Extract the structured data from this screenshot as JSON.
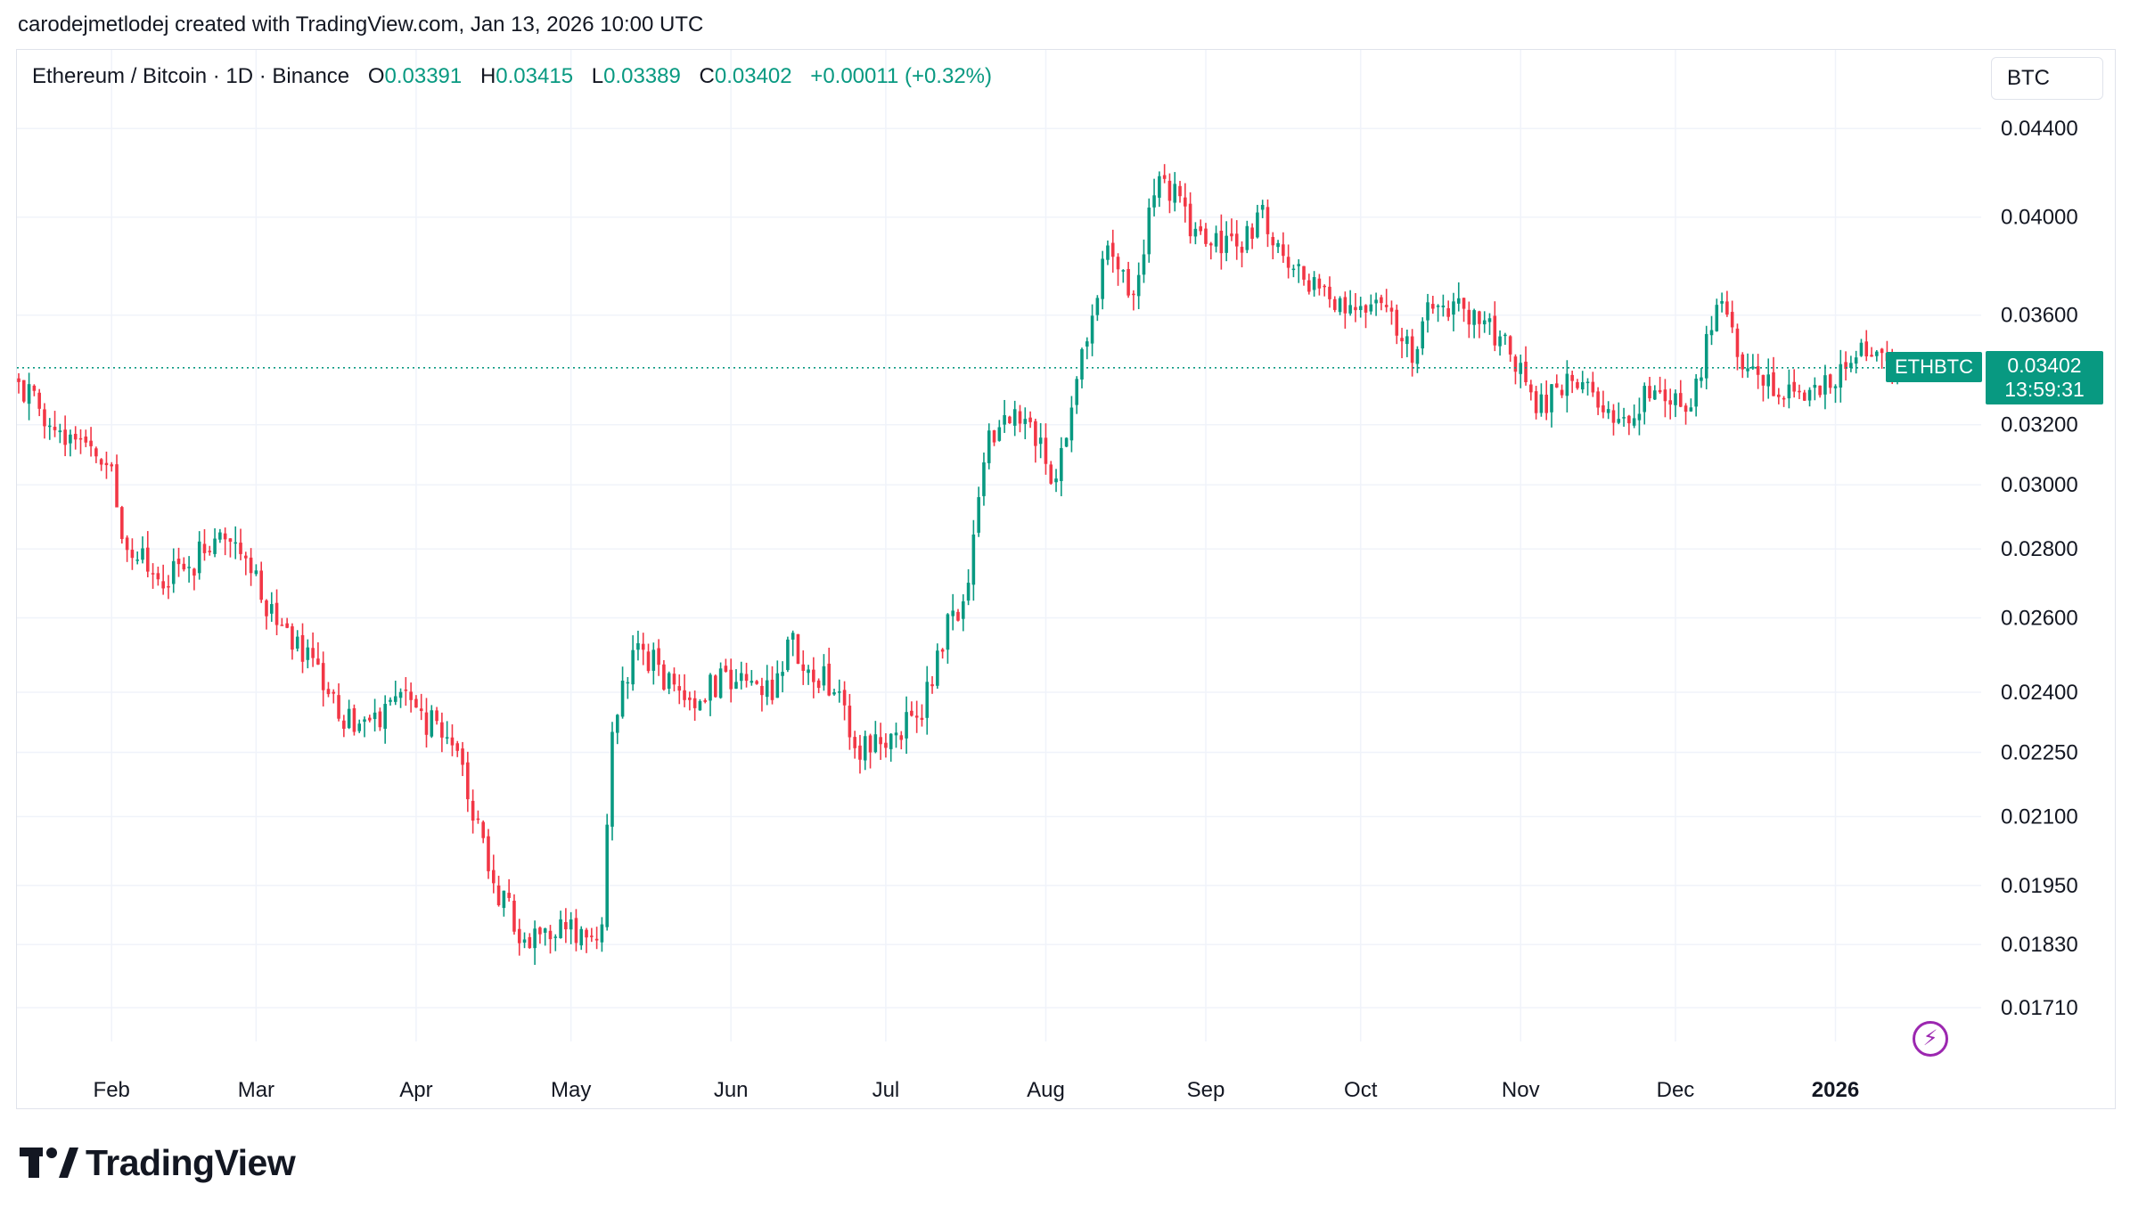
{
  "header": {
    "snapshot_line": "carodejmetlodej created with TradingView.com, Jan 13, 2026 10:00 UTC"
  },
  "legend": {
    "symbol": "Ethereum / Bitcoin · 1D · Binance",
    "open_label": "O",
    "open_value": "0.03391",
    "high_label": "H",
    "high_value": "0.03415",
    "low_label": "L",
    "low_value": "0.03389",
    "close_label": "C",
    "close_value": "0.03402",
    "change": "+0.00011 (+0.32%)"
  },
  "currency": "BTC",
  "price_badge": {
    "price": "0.03402",
    "countdown": "13:59:31",
    "series_tag": "ETHBTC"
  },
  "logo_text": "TradingView",
  "colors": {
    "up": "#089981",
    "down": "#f23645",
    "grid": "#f0f3fa",
    "text": "#131722"
  },
  "chart_data": {
    "type": "candlestick",
    "y_scale": "log",
    "ylim": [
      0.0163,
      0.0463
    ],
    "y_ticks": [
      "0.04400",
      "0.04000",
      "0.03600",
      "0.03200",
      "0.03000",
      "0.02800",
      "0.02600",
      "0.02400",
      "0.02250",
      "0.02100",
      "0.01950",
      "0.01830",
      "0.01710"
    ],
    "x_ticks": [
      "Feb",
      "Mar",
      "Apr",
      "May",
      "Jun",
      "Jul",
      "Aug",
      "Sep",
      "Oct",
      "Nov",
      "Dec",
      "2026"
    ],
    "x_range": [
      "2025-01-14",
      "2026-01-13"
    ],
    "last_price": 0.03402,
    "anchors": [
      {
        "date": "2025-01-14",
        "close": 0.0335
      },
      {
        "date": "2025-01-22",
        "close": 0.0318
      },
      {
        "date": "2025-02-01",
        "close": 0.0306
      },
      {
        "date": "2025-02-03",
        "close": 0.0283
      },
      {
        "date": "2025-02-10",
        "close": 0.0271
      },
      {
        "date": "2025-02-20",
        "close": 0.0279
      },
      {
        "date": "2025-02-25",
        "close": 0.0282
      },
      {
        "date": "2025-03-05",
        "close": 0.0258
      },
      {
        "date": "2025-03-12",
        "close": 0.0249
      },
      {
        "date": "2025-03-20",
        "close": 0.023
      },
      {
        "date": "2025-03-31",
        "close": 0.0238
      },
      {
        "date": "2025-04-10",
        "close": 0.0222
      },
      {
        "date": "2025-04-15",
        "close": 0.0198
      },
      {
        "date": "2025-04-22",
        "close": 0.0184
      },
      {
        "date": "2025-05-07",
        "close": 0.0187
      },
      {
        "date": "2025-05-09",
        "close": 0.023
      },
      {
        "date": "2025-05-14",
        "close": 0.0253
      },
      {
        "date": "2025-05-23",
        "close": 0.0238
      },
      {
        "date": "2025-06-03",
        "close": 0.0245
      },
      {
        "date": "2025-06-09",
        "close": 0.0238
      },
      {
        "date": "2025-06-12",
        "close": 0.0254
      },
      {
        "date": "2025-06-21",
        "close": 0.024
      },
      {
        "date": "2025-06-25",
        "close": 0.0226
      },
      {
        "date": "2025-07-08",
        "close": 0.0233
      },
      {
        "date": "2025-07-11",
        "close": 0.0251
      },
      {
        "date": "2025-07-17",
        "close": 0.027
      },
      {
        "date": "2025-07-21",
        "close": 0.0318
      },
      {
        "date": "2025-07-28",
        "close": 0.0322
      },
      {
        "date": "2025-08-03",
        "close": 0.0302
      },
      {
        "date": "2025-08-09",
        "close": 0.035
      },
      {
        "date": "2025-08-13",
        "close": 0.0388
      },
      {
        "date": "2025-08-18",
        "close": 0.0368
      },
      {
        "date": "2025-08-23",
        "close": 0.0418
      },
      {
        "date": "2025-08-30",
        "close": 0.0395
      },
      {
        "date": "2025-09-08",
        "close": 0.0385
      },
      {
        "date": "2025-09-11",
        "close": 0.0402
      },
      {
        "date": "2025-09-20",
        "close": 0.0374
      },
      {
        "date": "2025-09-26",
        "close": 0.0362
      },
      {
        "date": "2025-10-04",
        "close": 0.0366
      },
      {
        "date": "2025-10-09",
        "close": 0.035
      },
      {
        "date": "2025-10-11",
        "close": 0.0342
      },
      {
        "date": "2025-10-14",
        "close": 0.0365
      },
      {
        "date": "2025-10-25",
        "close": 0.0358
      },
      {
        "date": "2025-11-01",
        "close": 0.0342
      },
      {
        "date": "2025-11-04",
        "close": 0.0324
      },
      {
        "date": "2025-11-10",
        "close": 0.0338
      },
      {
        "date": "2025-11-20",
        "close": 0.0322
      },
      {
        "date": "2025-11-27",
        "close": 0.0332
      },
      {
        "date": "2025-12-04",
        "close": 0.0326
      },
      {
        "date": "2025-12-09",
        "close": 0.0364
      },
      {
        "date": "2025-12-15",
        "close": 0.034
      },
      {
        "date": "2025-12-20",
        "close": 0.033
      },
      {
        "date": "2025-12-28",
        "close": 0.0334
      },
      {
        "date": "2026-01-05",
        "close": 0.0344
      },
      {
        "date": "2026-01-13",
        "close": 0.03402
      }
    ]
  }
}
